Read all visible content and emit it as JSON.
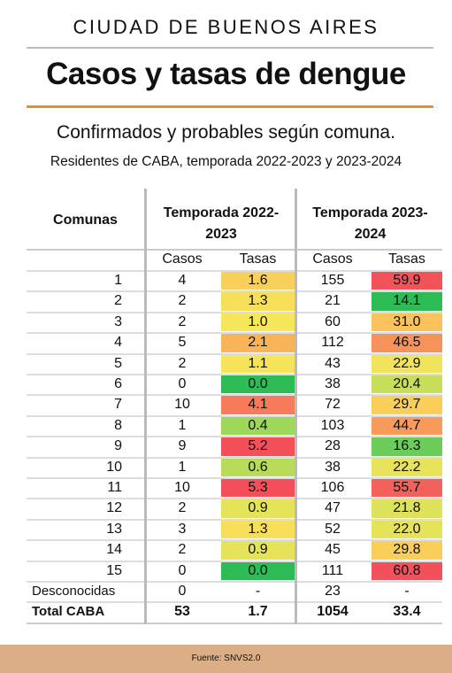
{
  "header": {
    "kicker": "CIUDAD DE BUENOS AIRES",
    "title": "Casos y tasas de dengue",
    "subtitle": "Confirmados y probables según comuna.",
    "description": "Residentes de CABA, temporada 2022-2023 y 2023-2024"
  },
  "table": {
    "col_header": "Comunas",
    "seasons": [
      "Temporada 2022-2023",
      "Temporada 2023-2024"
    ],
    "subheaders": [
      "Casos",
      "Tasas",
      "Casos",
      "Tasas"
    ],
    "rows": [
      {
        "cells": [
          "1",
          "4",
          "1.6",
          "155",
          "59.9"
        ],
        "colors": [
          "#f9d15a",
          "#f2525a"
        ]
      },
      {
        "cells": [
          "2",
          "2",
          "1.3",
          "21",
          "14.1"
        ],
        "colors": [
          "#f7df5a",
          "#2dbb55"
        ]
      },
      {
        "cells": [
          "3",
          "2",
          "1.0",
          "60",
          "31.0"
        ],
        "colors": [
          "#f6e65a",
          "#f9c25a"
        ]
      },
      {
        "cells": [
          "4",
          "5",
          "2.1",
          "112",
          "46.5"
        ],
        "colors": [
          "#f9b45a",
          "#f7925a"
        ]
      },
      {
        "cells": [
          "5",
          "2",
          "1.1",
          "43",
          "22.9"
        ],
        "colors": [
          "#f6e45a",
          "#f1e45a"
        ]
      },
      {
        "cells": [
          "6",
          "0",
          "0.0",
          "38",
          "20.4"
        ],
        "colors": [
          "#2dbb55",
          "#c6de5a"
        ]
      },
      {
        "cells": [
          "7",
          "10",
          "4.1",
          "72",
          "29.7"
        ],
        "colors": [
          "#f77b5a",
          "#f9cf5a"
        ]
      },
      {
        "cells": [
          "8",
          "1",
          "0.4",
          "103",
          "44.7"
        ],
        "colors": [
          "#9ed85a",
          "#f89a5a"
        ]
      },
      {
        "cells": [
          "9",
          "9",
          "5.2",
          "28",
          "16.3"
        ],
        "colors": [
          "#f4505a",
          "#6dcd5a"
        ]
      },
      {
        "cells": [
          "10",
          "1",
          "0.6",
          "38",
          "22.2"
        ],
        "colors": [
          "#b8dc5a",
          "#e8e35a"
        ]
      },
      {
        "cells": [
          "11",
          "10",
          "5.3",
          "106",
          "55.7"
        ],
        "colors": [
          "#f34e5a",
          "#f3625a"
        ]
      },
      {
        "cells": [
          "12",
          "2",
          "0.9",
          "47",
          "21.8"
        ],
        "colors": [
          "#e4e35a",
          "#dde25a"
        ]
      },
      {
        "cells": [
          "13",
          "3",
          "1.3",
          "52",
          "22.0"
        ],
        "colors": [
          "#f7df5a",
          "#e4e35a"
        ]
      },
      {
        "cells": [
          "14",
          "2",
          "0.9",
          "45",
          "29.8"
        ],
        "colors": [
          "#e4e35a",
          "#f9cf5a"
        ]
      },
      {
        "cells": [
          "15",
          "0",
          "0.0",
          "111",
          "60.8"
        ],
        "colors": [
          "#2dbb55",
          "#f2505a"
        ]
      },
      {
        "cells": [
          "Desconocidas",
          "0",
          "-",
          "23",
          "-"
        ]
      },
      {
        "cells": [
          "Total CABA",
          "53",
          "1.7",
          "1054",
          "33.4"
        ],
        "bold": true
      }
    ]
  },
  "footer": {
    "source": "Fuente: SNVS2.0"
  }
}
